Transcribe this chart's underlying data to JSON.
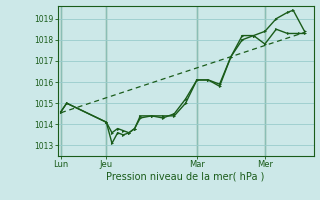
{
  "background_color": "#cce8e8",
  "grid_color": "#99cccc",
  "line_color": "#1a5c1a",
  "title": "Pression niveau de la mer( hPa )",
  "xlabel_ticks": [
    "Lun",
    "Jeu",
    "Mar",
    "Mer"
  ],
  "xlabel_tick_positions": [
    0,
    4,
    12,
    18
  ],
  "xlim": [
    -0.3,
    22.3
  ],
  "ylim": [
    1012.5,
    1019.6
  ],
  "yticks": [
    1013,
    1014,
    1015,
    1016,
    1017,
    1018,
    1019
  ],
  "trend_x": [
    0,
    21.5
  ],
  "trend_y": [
    1014.55,
    1018.35
  ],
  "series1_x": [
    0.0,
    0.5,
    4.0,
    4.5,
    5.0,
    5.5,
    6.0,
    6.5,
    7.0,
    8.0,
    9.0,
    10.0,
    11.0,
    12.0,
    13.0,
    14.0,
    15.0,
    16.0,
    17.0,
    18.0,
    19.0,
    20.0,
    21.0,
    21.5
  ],
  "series1_y": [
    1014.6,
    1015.0,
    1014.1,
    1013.6,
    1013.8,
    1013.7,
    1013.6,
    1013.8,
    1014.3,
    1014.4,
    1014.4,
    1014.4,
    1015.0,
    1016.1,
    1016.1,
    1015.9,
    1017.2,
    1018.0,
    1018.2,
    1017.8,
    1018.5,
    1018.3,
    1018.3,
    1018.3
  ],
  "series2_x": [
    0.0,
    0.5,
    4.0,
    4.5,
    5.0,
    5.5,
    6.0,
    6.5,
    7.0,
    8.0,
    9.0,
    10.0,
    11.0,
    12.0,
    13.0,
    14.0,
    15.0,
    16.0,
    17.0,
    18.0,
    19.0,
    20.0,
    20.5,
    21.5
  ],
  "series2_y": [
    1014.6,
    1015.0,
    1014.1,
    1013.1,
    1013.6,
    1013.5,
    1013.6,
    1013.8,
    1014.4,
    1014.4,
    1014.3,
    1014.5,
    1015.2,
    1016.1,
    1016.1,
    1015.8,
    1017.2,
    1018.2,
    1018.2,
    1018.4,
    1019.0,
    1019.3,
    1019.4,
    1018.4
  ]
}
